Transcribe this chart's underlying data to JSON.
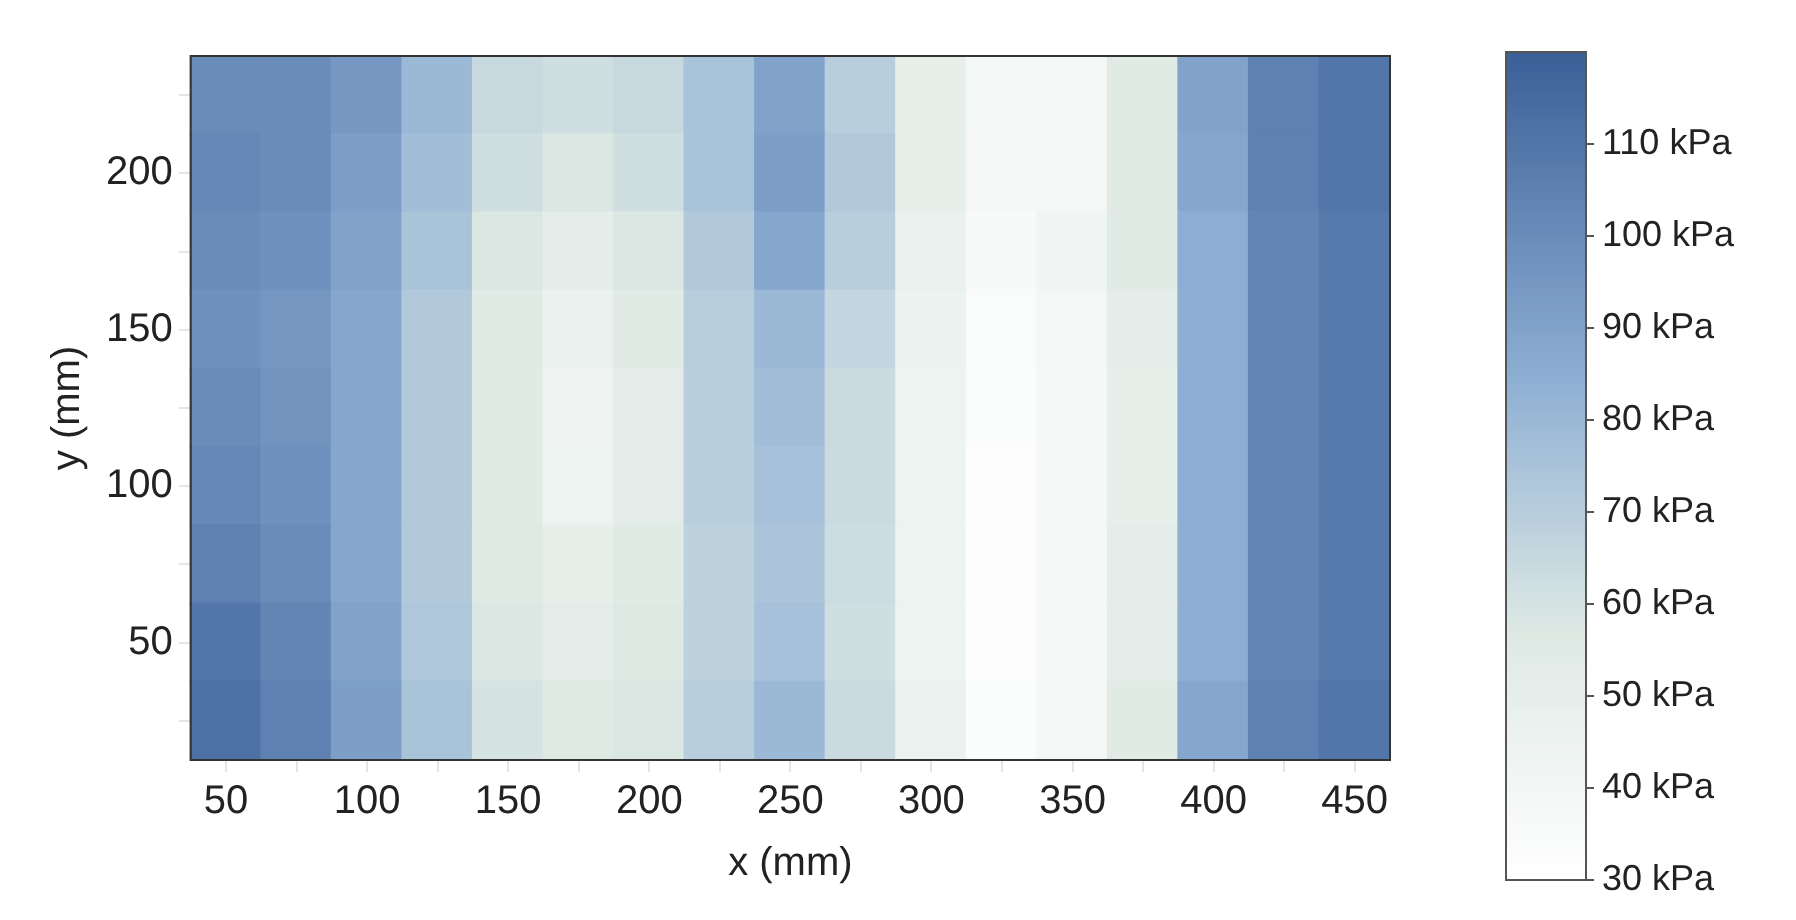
{
  "chart_data": {
    "type": "heatmap",
    "xlabel": "x (mm)",
    "ylabel": "y (mm)",
    "categories": [
      "50",
      null,
      "100",
      null,
      "150",
      null,
      "200",
      null,
      "250",
      null,
      "300",
      null,
      "350",
      null,
      "400",
      null,
      "450"
    ],
    "y_categories": [
      null,
      "200",
      null,
      "150",
      null,
      "100",
      null,
      "50",
      null
    ],
    "cells": [
      [
        100,
        100,
        95,
        80,
        65,
        62,
        65,
        75,
        90,
        70,
        50,
        40,
        40,
        55,
        90,
        105,
        110
      ],
      [
        102,
        100,
        92,
        78,
        62,
        58,
        62,
        75,
        92,
        72,
        50,
        38,
        40,
        55,
        88,
        105,
        110
      ],
      [
        100,
        98,
        90,
        75,
        58,
        52,
        58,
        72,
        88,
        70,
        48,
        36,
        42,
        55,
        85,
        103,
        108
      ],
      [
        98,
        95,
        88,
        72,
        55,
        47,
        55,
        70,
        80,
        66,
        46,
        34,
        40,
        52,
        85,
        103,
        108
      ],
      [
        100,
        97,
        88,
        72,
        55,
        43,
        53,
        70,
        78,
        64,
        45,
        33,
        38,
        50,
        85,
        103,
        108
      ],
      [
        102,
        98,
        88,
        72,
        55,
        45,
        53,
        70,
        76,
        64,
        45,
        32,
        38,
        50,
        85,
        103,
        108
      ],
      [
        105,
        100,
        88,
        72,
        56,
        50,
        55,
        68,
        74,
        63,
        45,
        32,
        38,
        52,
        85,
        103,
        108
      ],
      [
        110,
        103,
        90,
        73,
        58,
        53,
        57,
        68,
        76,
        62,
        45,
        32,
        38,
        52,
        85,
        103,
        108
      ],
      [
        112,
        105,
        92,
        75,
        60,
        56,
        58,
        70,
        80,
        64,
        46,
        33,
        40,
        55,
        88,
        105,
        110
      ]
    ],
    "clim": [
      30,
      120
    ],
    "cticks": [
      {
        "value": 30,
        "label": "30 kPa"
      },
      {
        "value": 40,
        "label": "40 kPa"
      },
      {
        "value": 50,
        "label": "50 kPa"
      },
      {
        "value": 60,
        "label": "60 kPa"
      },
      {
        "value": 70,
        "label": "70 kPa"
      },
      {
        "value": 80,
        "label": "80 kPa"
      },
      {
        "value": 90,
        "label": "90 kPa"
      },
      {
        "value": 100,
        "label": "100 kPa"
      },
      {
        "value": 110,
        "label": "110 kPa"
      }
    ],
    "legend": false
  }
}
